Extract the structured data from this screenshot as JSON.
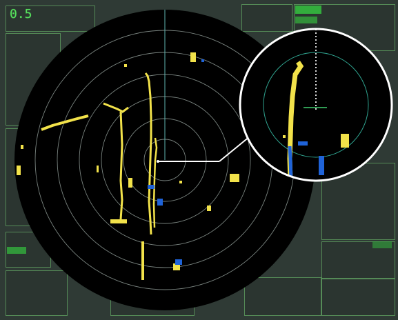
{
  "colors": {
    "background": "#2f3a35",
    "radar_disc": "#000000",
    "range_ring": "#8f9b96",
    "heading_line": "#5fb4b0",
    "echo_yellow": "#f2e24a",
    "echo_blue": "#1f63d8",
    "text_green": "#56e05d",
    "inset_border": "#ffffff"
  },
  "display": {
    "range_value": "0.5",
    "range_rings_count": 6,
    "zoom_inset_visible": true
  },
  "icons": {
    "own_ship": "own-ship-marker",
    "heading": "heading-line",
    "zoom": "zoom-inset"
  }
}
